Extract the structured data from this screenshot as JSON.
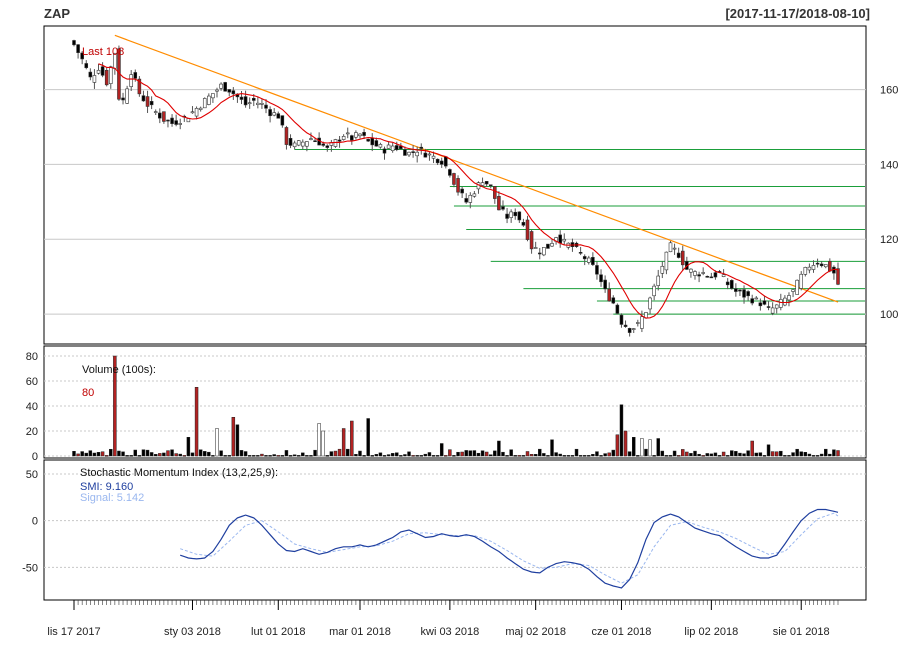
{
  "header": {
    "title": "ZAP",
    "date_range": "[2017-11-17/2018-08-10]"
  },
  "colors": {
    "up": "#ffffff",
    "down": "#000000",
    "down_big": "#b22222",
    "ma_line": "#e00000",
    "trend_line": "#ff8c00",
    "support_lines": "#1a9e3a",
    "smi_line": "#1f3f9f",
    "signal_line": "#9ab7ef",
    "grid": "#c8c8c8",
    "volume_red": "#b22222"
  },
  "chart_data": [
    {
      "type": "candlestick",
      "panel": "price",
      "last_label": "Last 108",
      "y_ticks": [
        "100",
        "120",
        "140",
        "160"
      ],
      "ylim": [
        92,
        177
      ],
      "support_levels": [
        144.0,
        134.1,
        128.9,
        122.6,
        114.1,
        106.8,
        103.5,
        100.0
      ],
      "trendline": {
        "from": [
          0,
          174.5
        ],
        "to": [
          187,
          103.2
        ]
      },
      "ma_window": 10,
      "x_ticks": [
        {
          "label": "lis 17 2017",
          "index": 0
        },
        {
          "label": "sty 03 2018",
          "index": 29
        },
        {
          "label": "lut 01 2018",
          "index": 50
        },
        {
          "label": "mar 01 2018",
          "index": 70
        },
        {
          "label": "kwi 03 2018",
          "index": 92
        },
        {
          "label": "maj 02 2018",
          "index": 113
        },
        {
          "label": "cze 01 2018",
          "index": 134
        },
        {
          "label": "lip 02 2018",
          "index": 156
        },
        {
          "label": "sie 01 2018",
          "index": 178
        }
      ],
      "close_keypoints": [
        [
          0,
          172
        ],
        [
          2,
          168
        ],
        [
          4,
          163
        ],
        [
          6,
          166
        ],
        [
          8,
          162
        ],
        [
          10,
          170
        ],
        [
          11,
          158
        ],
        [
          12,
          157
        ],
        [
          14,
          165
        ],
        [
          16,
          159
        ],
        [
          18,
          156
        ],
        [
          20,
          154
        ],
        [
          22,
          152
        ],
        [
          24,
          151
        ],
        [
          26,
          152
        ],
        [
          28,
          153
        ],
        [
          30,
          155
        ],
        [
          32,
          157
        ],
        [
          34,
          159
        ],
        [
          36,
          161
        ],
        [
          38,
          160
        ],
        [
          40,
          158
        ],
        [
          42,
          156
        ],
        [
          44,
          157
        ],
        [
          46,
          156
        ],
        [
          48,
          154
        ],
        [
          50,
          153
        ],
        [
          52,
          146
        ],
        [
          54,
          145
        ],
        [
          56,
          146
        ],
        [
          58,
          147
        ],
        [
          60,
          146
        ],
        [
          62,
          144
        ],
        [
          64,
          146
        ],
        [
          66,
          148
        ],
        [
          68,
          147
        ],
        [
          70,
          148
        ],
        [
          72,
          146
        ],
        [
          74,
          145
        ],
        [
          76,
          144
        ],
        [
          78,
          145
        ],
        [
          80,
          144
        ],
        [
          82,
          143
        ],
        [
          84,
          144
        ],
        [
          86,
          143
        ],
        [
          88,
          142
        ],
        [
          90,
          141
        ],
        [
          92,
          138
        ],
        [
          94,
          133
        ],
        [
          96,
          130
        ],
        [
          98,
          133
        ],
        [
          100,
          136
        ],
        [
          102,
          134
        ],
        [
          104,
          128
        ],
        [
          106,
          126
        ],
        [
          108,
          127
        ],
        [
          110,
          124
        ],
        [
          112,
          118
        ],
        [
          114,
          117
        ],
        [
          116,
          118
        ],
        [
          118,
          121
        ],
        [
          120,
          119
        ],
        [
          122,
          118
        ],
        [
          124,
          116
        ],
        [
          126,
          114
        ],
        [
          128,
          111
        ],
        [
          130,
          106
        ],
        [
          132,
          103
        ],
        [
          134,
          98
        ],
        [
          136,
          96
        ],
        [
          138,
          97
        ],
        [
          140,
          101
        ],
        [
          142,
          107
        ],
        [
          144,
          113
        ],
        [
          146,
          118
        ],
        [
          148,
          116
        ],
        [
          150,
          112
        ],
        [
          152,
          111
        ],
        [
          154,
          111
        ],
        [
          156,
          110
        ],
        [
          158,
          111
        ],
        [
          160,
          108
        ],
        [
          162,
          106
        ],
        [
          164,
          105
        ],
        [
          166,
          104
        ],
        [
          168,
          103
        ],
        [
          170,
          101
        ],
        [
          172,
          102
        ],
        [
          174,
          104
        ],
        [
          176,
          106
        ],
        [
          178,
          110
        ],
        [
          180,
          113
        ],
        [
          182,
          114
        ],
        [
          184,
          113
        ],
        [
          186,
          111
        ],
        [
          187,
          108
        ]
      ]
    },
    {
      "type": "bar",
      "panel": "volume",
      "title": "Volume (100s):",
      "last_value_label": "80",
      "y_ticks": [
        "0",
        "20",
        "40",
        "60",
        "80"
      ],
      "ylim": [
        0,
        80
      ],
      "spikes": [
        {
          "index": 10,
          "value": 80,
          "color": "red"
        },
        {
          "index": 28,
          "value": 15
        },
        {
          "index": 30,
          "value": 55
        },
        {
          "index": 35,
          "value": 22,
          "color": "white"
        },
        {
          "index": 39,
          "value": 31
        },
        {
          "index": 40,
          "value": 25
        },
        {
          "index": 60,
          "value": 26,
          "color": "white"
        },
        {
          "index": 61,
          "value": 20,
          "color": "white"
        },
        {
          "index": 66,
          "value": 22,
          "color": "red"
        },
        {
          "index": 68,
          "value": 28,
          "color": "red"
        },
        {
          "index": 72,
          "value": 30
        },
        {
          "index": 90,
          "value": 10
        },
        {
          "index": 104,
          "value": 12
        },
        {
          "index": 117,
          "value": 13
        },
        {
          "index": 133,
          "value": 17,
          "color": "red"
        },
        {
          "index": 134,
          "value": 41
        },
        {
          "index": 135,
          "value": 20
        },
        {
          "index": 137,
          "value": 15
        },
        {
          "index": 139,
          "value": 14,
          "color": "white"
        },
        {
          "index": 141,
          "value": 13,
          "color": "white"
        },
        {
          "index": 143,
          "value": 14
        },
        {
          "index": 166,
          "value": 12,
          "color": "red"
        },
        {
          "index": 170,
          "value": 9
        }
      ]
    },
    {
      "type": "line",
      "panel": "smi",
      "title": "Stochastic Momentum Index (13,2,25,9):",
      "series": [
        {
          "name": "SMI",
          "last_value": "9.160"
        },
        {
          "name": "Signal",
          "last_value": "5.142"
        }
      ],
      "y_ticks": [
        "-50",
        "0",
        "50"
      ],
      "ylim": [
        -85,
        65
      ],
      "smi_keypoints": [
        [
          26,
          -37
        ],
        [
          28,
          -40
        ],
        [
          30,
          -41
        ],
        [
          32,
          -40
        ],
        [
          34,
          -33
        ],
        [
          36,
          -20
        ],
        [
          38,
          -5
        ],
        [
          40,
          3
        ],
        [
          42,
          6
        ],
        [
          44,
          3
        ],
        [
          46,
          -5
        ],
        [
          48,
          -15
        ],
        [
          50,
          -25
        ],
        [
          52,
          -32
        ],
        [
          54,
          -33
        ],
        [
          56,
          -30
        ],
        [
          58,
          -33
        ],
        [
          60,
          -36
        ],
        [
          62,
          -34
        ],
        [
          64,
          -30
        ],
        [
          66,
          -28
        ],
        [
          68,
          -28
        ],
        [
          70,
          -26
        ],
        [
          72,
          -28
        ],
        [
          74,
          -26
        ],
        [
          76,
          -22
        ],
        [
          78,
          -18
        ],
        [
          80,
          -12
        ],
        [
          82,
          -10
        ],
        [
          84,
          -14
        ],
        [
          86,
          -18
        ],
        [
          88,
          -17
        ],
        [
          90,
          -14
        ],
        [
          92,
          -16
        ],
        [
          94,
          -17
        ],
        [
          96,
          -15
        ],
        [
          98,
          -17
        ],
        [
          100,
          -22
        ],
        [
          102,
          -28
        ],
        [
          104,
          -33
        ],
        [
          106,
          -40
        ],
        [
          108,
          -46
        ],
        [
          110,
          -52
        ],
        [
          112,
          -55
        ],
        [
          114,
          -56
        ],
        [
          116,
          -50
        ],
        [
          118,
          -46
        ],
        [
          120,
          -44
        ],
        [
          122,
          -45
        ],
        [
          124,
          -47
        ],
        [
          126,
          -52
        ],
        [
          128,
          -60
        ],
        [
          130,
          -67
        ],
        [
          132,
          -70
        ],
        [
          134,
          -72
        ],
        [
          136,
          -63
        ],
        [
          138,
          -45
        ],
        [
          140,
          -20
        ],
        [
          142,
          -2
        ],
        [
          144,
          4
        ],
        [
          146,
          7
        ],
        [
          148,
          4
        ],
        [
          150,
          -2
        ],
        [
          152,
          -8
        ],
        [
          154,
          -11
        ],
        [
          156,
          -14
        ],
        [
          158,
          -16
        ],
        [
          160,
          -22
        ],
        [
          162,
          -28
        ],
        [
          164,
          -33
        ],
        [
          166,
          -38
        ],
        [
          168,
          -40
        ],
        [
          170,
          -40
        ],
        [
          172,
          -37
        ],
        [
          174,
          -25
        ],
        [
          176,
          -12
        ],
        [
          178,
          0
        ],
        [
          180,
          8
        ],
        [
          182,
          12
        ],
        [
          184,
          12
        ],
        [
          186,
          10
        ],
        [
          187,
          9
        ]
      ],
      "signal_keypoints": [
        [
          26,
          -30
        ],
        [
          30,
          -36
        ],
        [
          34,
          -38
        ],
        [
          38,
          -22
        ],
        [
          42,
          -5
        ],
        [
          46,
          0
        ],
        [
          50,
          -12
        ],
        [
          54,
          -25
        ],
        [
          58,
          -30
        ],
        [
          62,
          -34
        ],
        [
          66,
          -31
        ],
        [
          70,
          -28
        ],
        [
          74,
          -27
        ],
        [
          78,
          -22
        ],
        [
          82,
          -14
        ],
        [
          86,
          -13
        ],
        [
          90,
          -15
        ],
        [
          94,
          -16
        ],
        [
          98,
          -16
        ],
        [
          102,
          -22
        ],
        [
          106,
          -32
        ],
        [
          110,
          -43
        ],
        [
          114,
          -51
        ],
        [
          118,
          -50
        ],
        [
          122,
          -46
        ],
        [
          126,
          -48
        ],
        [
          130,
          -58
        ],
        [
          134,
          -67
        ],
        [
          138,
          -58
        ],
        [
          142,
          -28
        ],
        [
          146,
          -5
        ],
        [
          150,
          -1
        ],
        [
          154,
          -7
        ],
        [
          158,
          -12
        ],
        [
          162,
          -19
        ],
        [
          166,
          -28
        ],
        [
          170,
          -36
        ],
        [
          174,
          -33
        ],
        [
          178,
          -15
        ],
        [
          182,
          2
        ],
        [
          186,
          8
        ],
        [
          187,
          5
        ]
      ]
    }
  ]
}
